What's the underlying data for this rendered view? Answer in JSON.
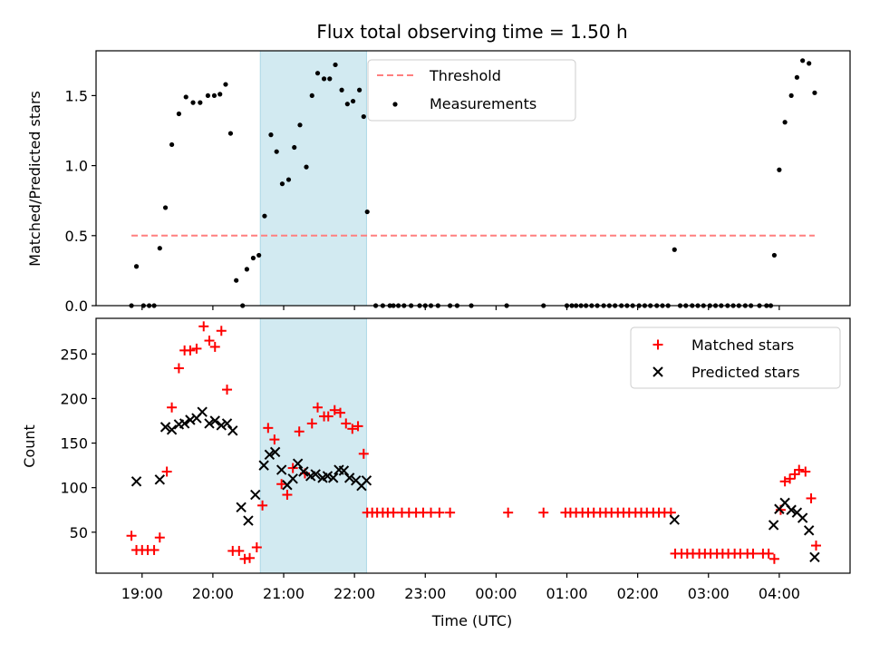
{
  "chart_data": [
    {
      "type": "scatter",
      "title": "Flux total observing time = 1.50 h",
      "xlabel": "",
      "ylabel": "Matched/Predicted stars",
      "ylim": [
        0,
        1.82
      ],
      "yticks": [
        0.0,
        0.5,
        1.0,
        1.5
      ],
      "ytick_labels": [
        "0.0",
        "0.5",
        "1.0",
        "1.5"
      ],
      "x_unit": "hours (UTC, continuing past midnight)",
      "xlim": [
        18.35,
        29.0
      ],
      "shaded_interval": {
        "x": [
          20.67,
          22.17
        ],
        "color": "#add8e6"
      },
      "grid": false,
      "legend_position": "upper-middle",
      "threshold": {
        "name": "Threshold",
        "y": 0.5,
        "x": [
          18.85,
          28.5
        ],
        "color": "#ff7f7f",
        "style": "dashed"
      },
      "series": [
        {
          "name": "Measurements",
          "color": "#000000",
          "marker": "dot",
          "points": [
            [
              18.85,
              0.0
            ],
            [
              18.92,
              0.28
            ],
            [
              19.02,
              0.0
            ],
            [
              19.1,
              0.0
            ],
            [
              19.17,
              0.0
            ],
            [
              19.25,
              0.41
            ],
            [
              19.33,
              0.7
            ],
            [
              19.42,
              1.15
            ],
            [
              19.52,
              1.37
            ],
            [
              19.62,
              1.49
            ],
            [
              19.72,
              1.45
            ],
            [
              19.82,
              1.45
            ],
            [
              19.93,
              1.5
            ],
            [
              20.02,
              1.5
            ],
            [
              20.1,
              1.51
            ],
            [
              20.18,
              1.58
            ],
            [
              20.25,
              1.23
            ],
            [
              20.33,
              0.18
            ],
            [
              20.42,
              0.0
            ],
            [
              20.48,
              0.26
            ],
            [
              20.57,
              0.34
            ],
            [
              20.65,
              0.36
            ],
            [
              20.73,
              0.64
            ],
            [
              20.82,
              1.22
            ],
            [
              20.9,
              1.1
            ],
            [
              20.98,
              0.87
            ],
            [
              21.07,
              0.9
            ],
            [
              21.15,
              1.13
            ],
            [
              21.23,
              1.29
            ],
            [
              21.32,
              0.99
            ],
            [
              21.4,
              1.5
            ],
            [
              21.48,
              1.66
            ],
            [
              21.57,
              1.62
            ],
            [
              21.65,
              1.62
            ],
            [
              21.73,
              1.72
            ],
            [
              21.82,
              1.54
            ],
            [
              21.9,
              1.44
            ],
            [
              21.98,
              1.46
            ],
            [
              22.07,
              1.54
            ],
            [
              22.13,
              1.35
            ],
            [
              22.18,
              0.67
            ],
            [
              22.3,
              0.0
            ],
            [
              22.4,
              0.0
            ],
            [
              22.5,
              0.0
            ],
            [
              22.55,
              0.0
            ],
            [
              22.62,
              0.0
            ],
            [
              22.7,
              0.0
            ],
            [
              22.8,
              0.0
            ],
            [
              22.92,
              0.0
            ],
            [
              23.0,
              0.0
            ],
            [
              23.08,
              0.0
            ],
            [
              23.18,
              0.0
            ],
            [
              23.35,
              0.0
            ],
            [
              23.45,
              0.0
            ],
            [
              23.65,
              0.0
            ],
            [
              24.15,
              0.0
            ],
            [
              24.67,
              0.0
            ],
            [
              25.0,
              0.0
            ],
            [
              25.07,
              0.0
            ],
            [
              25.13,
              0.0
            ],
            [
              25.2,
              0.0
            ],
            [
              25.27,
              0.0
            ],
            [
              25.35,
              0.0
            ],
            [
              25.43,
              0.0
            ],
            [
              25.52,
              0.0
            ],
            [
              25.6,
              0.0
            ],
            [
              25.68,
              0.0
            ],
            [
              25.77,
              0.0
            ],
            [
              25.85,
              0.0
            ],
            [
              25.93,
              0.0
            ],
            [
              26.02,
              0.0
            ],
            [
              26.1,
              0.0
            ],
            [
              26.18,
              0.0
            ],
            [
              26.27,
              0.0
            ],
            [
              26.35,
              0.0
            ],
            [
              26.43,
              0.0
            ],
            [
              26.52,
              0.4
            ],
            [
              26.6,
              0.0
            ],
            [
              26.68,
              0.0
            ],
            [
              26.77,
              0.0
            ],
            [
              26.85,
              0.0
            ],
            [
              26.93,
              0.0
            ],
            [
              27.02,
              0.0
            ],
            [
              27.1,
              0.0
            ],
            [
              27.18,
              0.0
            ],
            [
              27.27,
              0.0
            ],
            [
              27.35,
              0.0
            ],
            [
              27.43,
              0.0
            ],
            [
              27.52,
              0.0
            ],
            [
              27.6,
              0.0
            ],
            [
              27.72,
              0.0
            ],
            [
              27.82,
              0.0
            ],
            [
              27.88,
              0.0
            ],
            [
              27.93,
              0.36
            ],
            [
              28.0,
              0.97
            ],
            [
              28.08,
              1.31
            ],
            [
              28.17,
              1.5
            ],
            [
              28.25,
              1.63
            ],
            [
              28.33,
              1.75
            ],
            [
              28.42,
              1.73
            ],
            [
              28.5,
              1.52
            ]
          ]
        }
      ]
    },
    {
      "type": "scatter",
      "title": "",
      "xlabel": "Time (UTC)",
      "ylabel": "Count",
      "ylim": [
        4,
        290
      ],
      "yticks": [
        50,
        100,
        150,
        200,
        250
      ],
      "ytick_labels": [
        "50",
        "100",
        "150",
        "200",
        "250"
      ],
      "x_unit": "hours (UTC, continuing past midnight)",
      "xlim": [
        18.35,
        29.0
      ],
      "xticks": [
        19,
        20,
        21,
        22,
        23,
        24,
        25,
        26,
        27,
        28
      ],
      "xtick_labels": [
        "19:00",
        "20:00",
        "21:00",
        "22:00",
        "23:00",
        "00:00",
        "01:00",
        "02:00",
        "03:00",
        "04:00"
      ],
      "shaded_interval": {
        "x": [
          20.67,
          22.17
        ],
        "color": "#add8e6"
      },
      "grid": false,
      "legend_position": "top-right",
      "series": [
        {
          "name": "Matched stars",
          "color": "#ff0000",
          "marker": "plus",
          "points": [
            [
              18.85,
              46
            ],
            [
              18.92,
              30
            ],
            [
              19.0,
              30
            ],
            [
              19.08,
              30
            ],
            [
              19.17,
              30
            ],
            [
              19.25,
              44
            ],
            [
              19.35,
              118
            ],
            [
              19.42,
              190
            ],
            [
              19.52,
              234
            ],
            [
              19.6,
              254
            ],
            [
              19.68,
              254
            ],
            [
              19.77,
              256
            ],
            [
              19.87,
              281
            ],
            [
              19.95,
              265
            ],
            [
              20.03,
              258
            ],
            [
              20.12,
              276
            ],
            [
              20.2,
              210
            ],
            [
              20.28,
              29
            ],
            [
              20.37,
              29
            ],
            [
              20.45,
              20
            ],
            [
              20.52,
              21
            ],
            [
              20.62,
              33
            ],
            [
              20.7,
              80
            ],
            [
              20.78,
              167
            ],
            [
              20.87,
              154
            ],
            [
              20.97,
              104
            ],
            [
              21.05,
              92
            ],
            [
              21.13,
              122
            ],
            [
              21.22,
              163
            ],
            [
              21.3,
              116
            ],
            [
              21.4,
              172
            ],
            [
              21.48,
              190
            ],
            [
              21.57,
              180
            ],
            [
              21.63,
              180
            ],
            [
              21.72,
              187
            ],
            [
              21.8,
              184
            ],
            [
              21.88,
              172
            ],
            [
              21.97,
              166
            ],
            [
              22.05,
              169
            ],
            [
              22.13,
              138
            ],
            [
              22.18,
              72
            ],
            [
              22.25,
              72
            ],
            [
              22.32,
              72
            ],
            [
              22.4,
              72
            ],
            [
              22.47,
              72
            ],
            [
              22.55,
              72
            ],
            [
              22.67,
              72
            ],
            [
              22.77,
              72
            ],
            [
              22.87,
              72
            ],
            [
              22.97,
              72
            ],
            [
              23.08,
              72
            ],
            [
              23.2,
              72
            ],
            [
              23.35,
              72
            ],
            [
              24.17,
              72
            ],
            [
              24.67,
              72
            ],
            [
              24.98,
              72
            ],
            [
              25.05,
              72
            ],
            [
              25.13,
              72
            ],
            [
              25.22,
              72
            ],
            [
              25.3,
              72
            ],
            [
              25.38,
              72
            ],
            [
              25.47,
              72
            ],
            [
              25.55,
              72
            ],
            [
              25.63,
              72
            ],
            [
              25.72,
              72
            ],
            [
              25.8,
              72
            ],
            [
              25.88,
              72
            ],
            [
              25.97,
              72
            ],
            [
              26.05,
              72
            ],
            [
              26.13,
              72
            ],
            [
              26.22,
              72
            ],
            [
              26.3,
              72
            ],
            [
              26.38,
              72
            ],
            [
              26.47,
              72
            ],
            [
              26.53,
              26
            ],
            [
              26.62,
              26
            ],
            [
              26.7,
              26
            ],
            [
              26.78,
              26
            ],
            [
              26.87,
              26
            ],
            [
              26.95,
              26
            ],
            [
              27.03,
              26
            ],
            [
              27.12,
              26
            ],
            [
              27.2,
              26
            ],
            [
              27.28,
              26
            ],
            [
              27.37,
              26
            ],
            [
              27.45,
              26
            ],
            [
              27.55,
              26
            ],
            [
              27.63,
              26
            ],
            [
              27.77,
              26
            ],
            [
              27.85,
              26
            ],
            [
              27.93,
              20
            ],
            [
              28.02,
              75
            ],
            [
              28.08,
              107
            ],
            [
              28.15,
              110
            ],
            [
              28.22,
              115
            ],
            [
              28.28,
              120
            ],
            [
              28.37,
              118
            ],
            [
              28.45,
              88
            ],
            [
              28.52,
              35
            ]
          ]
        },
        {
          "name": "Predicted stars",
          "color": "#000000",
          "marker": "x",
          "points": [
            [
              18.92,
              107
            ],
            [
              19.25,
              109
            ],
            [
              19.33,
              168
            ],
            [
              19.42,
              165
            ],
            [
              19.52,
              171
            ],
            [
              19.6,
              172
            ],
            [
              19.68,
              176
            ],
            [
              19.77,
              178
            ],
            [
              19.85,
              185
            ],
            [
              19.95,
              172
            ],
            [
              20.03,
              175
            ],
            [
              20.12,
              170
            ],
            [
              20.2,
              172
            ],
            [
              20.28,
              164
            ],
            [
              20.4,
              78
            ],
            [
              20.5,
              63
            ],
            [
              20.6,
              92
            ],
            [
              20.72,
              125
            ],
            [
              20.8,
              137
            ],
            [
              20.88,
              140
            ],
            [
              20.97,
              120
            ],
            [
              21.05,
              103
            ],
            [
              21.13,
              110
            ],
            [
              21.2,
              127
            ],
            [
              21.28,
              118
            ],
            [
              21.38,
              113
            ],
            [
              21.45,
              115
            ],
            [
              21.55,
              111
            ],
            [
              21.62,
              113
            ],
            [
              21.7,
              111
            ],
            [
              21.78,
              120
            ],
            [
              21.85,
              119
            ],
            [
              21.93,
              111
            ],
            [
              22.02,
              108
            ],
            [
              22.1,
              102
            ],
            [
              22.17,
              108
            ],
            [
              26.52,
              64
            ],
            [
              27.92,
              58
            ],
            [
              28.0,
              76
            ],
            [
              28.08,
              83
            ],
            [
              28.17,
              75
            ],
            [
              28.25,
              72
            ],
            [
              28.33,
              66
            ],
            [
              28.42,
              52
            ],
            [
              28.5,
              22
            ]
          ]
        }
      ]
    }
  ]
}
